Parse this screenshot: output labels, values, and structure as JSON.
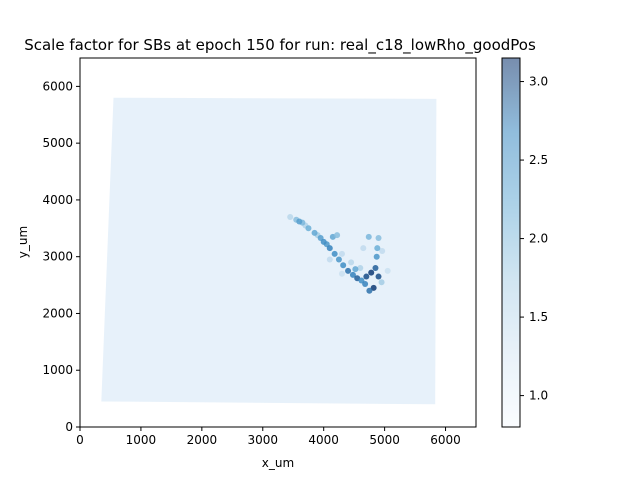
{
  "chart_data": {
    "type": "scatter",
    "title": "Scale factor for SBs at epoch 150 for run: real_c18_lowRho_goodPos",
    "xlabel": "x_um",
    "ylabel": "y_um",
    "xlim": [
      0,
      6500
    ],
    "ylim": [
      0,
      6500
    ],
    "xticks": [
      0,
      1000,
      2000,
      3000,
      4000,
      5000,
      6000
    ],
    "yticks": [
      0,
      1000,
      2000,
      3000,
      4000,
      5000,
      6000
    ],
    "grid": false,
    "colormap": "Blues",
    "colorbar": {
      "range": [
        0.8,
        3.15
      ],
      "ticks": [
        1.0,
        1.5,
        2.0,
        2.5,
        3.0
      ],
      "tick_labels": [
        "1.0",
        "1.5",
        "2.0",
        "2.5",
        "3.0"
      ]
    },
    "background_region": {
      "description": "dense near-uniform points forming a quadrilateral puck",
      "corners": [
        [
          550,
          5800
        ],
        [
          5850,
          5780
        ],
        [
          5830,
          400
        ],
        [
          350,
          450
        ]
      ],
      "scale_factor": 1.0
    },
    "high_points": [
      {
        "x": 3550,
        "y": 3650,
        "v": 2.0
      },
      {
        "x": 3650,
        "y": 3600,
        "v": 2.1
      },
      {
        "x": 3750,
        "y": 3500,
        "v": 2.2
      },
      {
        "x": 3850,
        "y": 3420,
        "v": 2.3
      },
      {
        "x": 3950,
        "y": 3330,
        "v": 2.4
      },
      {
        "x": 4050,
        "y": 3220,
        "v": 2.5
      },
      {
        "x": 4100,
        "y": 3150,
        "v": 2.7
      },
      {
        "x": 4180,
        "y": 3050,
        "v": 2.6
      },
      {
        "x": 4250,
        "y": 2950,
        "v": 2.5
      },
      {
        "x": 4320,
        "y": 2850,
        "v": 2.6
      },
      {
        "x": 4400,
        "y": 2750,
        "v": 2.8
      },
      {
        "x": 4480,
        "y": 2680,
        "v": 2.7
      },
      {
        "x": 4550,
        "y": 2620,
        "v": 2.9
      },
      {
        "x": 4620,
        "y": 2580,
        "v": 2.6
      },
      {
        "x": 4700,
        "y": 2650,
        "v": 3.0
      },
      {
        "x": 4780,
        "y": 2720,
        "v": 3.1
      },
      {
        "x": 4850,
        "y": 2800,
        "v": 2.9
      },
      {
        "x": 4900,
        "y": 2650,
        "v": 3.0
      },
      {
        "x": 4820,
        "y": 2450,
        "v": 3.1
      },
      {
        "x": 4750,
        "y": 2400,
        "v": 2.8
      },
      {
        "x": 4870,
        "y": 3000,
        "v": 2.5
      },
      {
        "x": 4880,
        "y": 3150,
        "v": 2.2
      },
      {
        "x": 4900,
        "y": 3330,
        "v": 2.0
      },
      {
        "x": 4740,
        "y": 3350,
        "v": 2.1
      },
      {
        "x": 4150,
        "y": 3350,
        "v": 2.3
      },
      {
        "x": 4220,
        "y": 3380,
        "v": 2.0
      },
      {
        "x": 3600,
        "y": 3620,
        "v": 2.4
      },
      {
        "x": 4000,
        "y": 3260,
        "v": 2.6
      },
      {
        "x": 4520,
        "y": 2780,
        "v": 2.3
      },
      {
        "x": 4680,
        "y": 2520,
        "v": 2.7
      }
    ],
    "mid_points": [
      {
        "x": 3450,
        "y": 3700,
        "v": 1.6
      },
      {
        "x": 3700,
        "y": 3550,
        "v": 1.7
      },
      {
        "x": 3900,
        "y": 3380,
        "v": 1.8
      },
      {
        "x": 4300,
        "y": 3050,
        "v": 1.5
      },
      {
        "x": 4450,
        "y": 2900,
        "v": 1.6
      },
      {
        "x": 4600,
        "y": 2800,
        "v": 1.7
      },
      {
        "x": 4950,
        "y": 2550,
        "v": 1.8
      },
      {
        "x": 4650,
        "y": 3150,
        "v": 1.5
      },
      {
        "x": 5050,
        "y": 2750,
        "v": 1.4
      },
      {
        "x": 4300,
        "y": 2700,
        "v": 1.4
      },
      {
        "x": 4100,
        "y": 2950,
        "v": 1.5
      },
      {
        "x": 4960,
        "y": 3100,
        "v": 1.5
      }
    ]
  }
}
